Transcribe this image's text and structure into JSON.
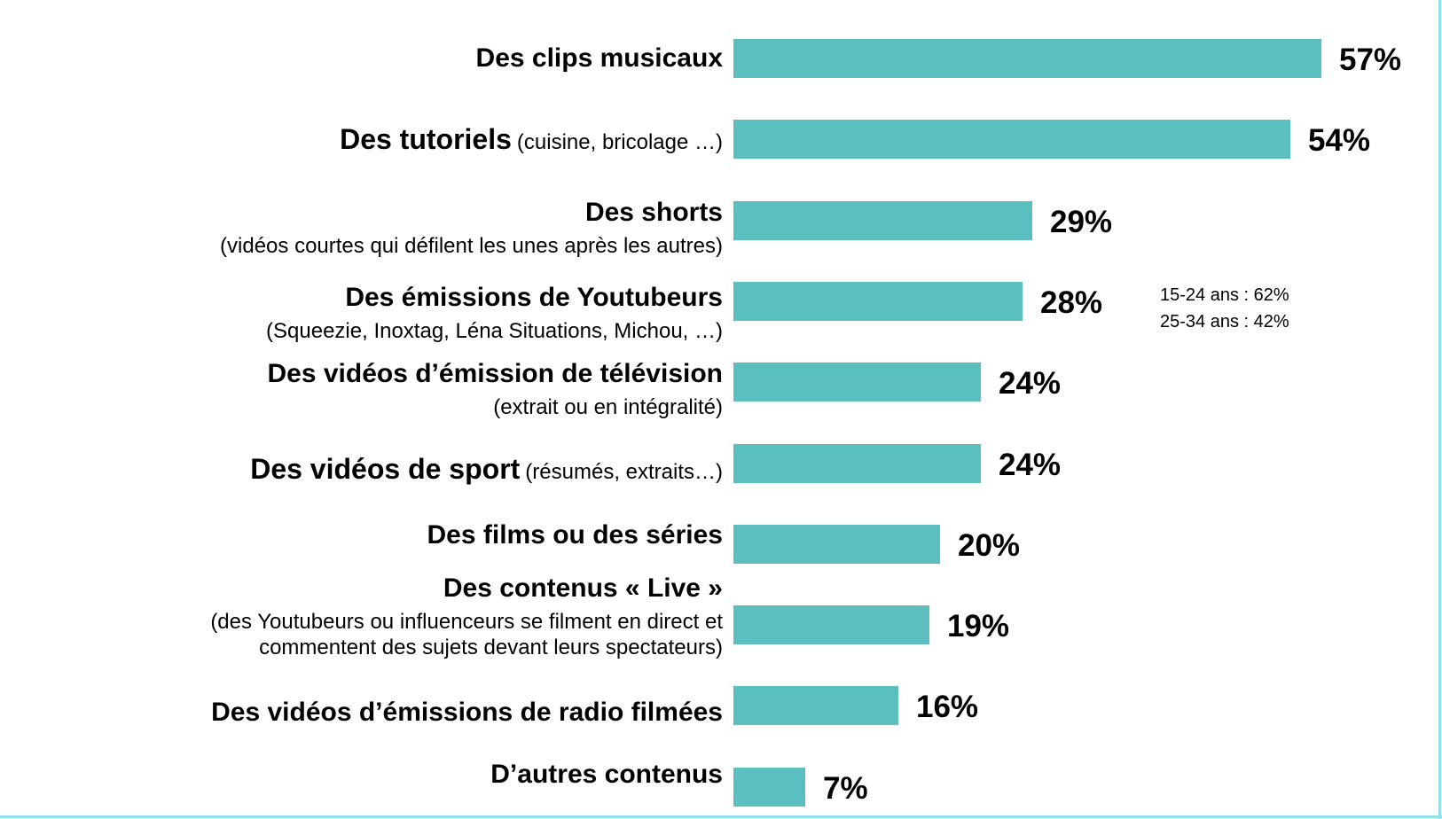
{
  "chart_data": {
    "type": "bar",
    "orientation": "horizontal",
    "xlim": [
      0,
      57
    ],
    "bar_color": "#5bbfc0",
    "border_color": "#8fe3e8",
    "categories": [
      {
        "label": "Des clips musicaux",
        "detail": "",
        "detail_inline": false,
        "value": 57,
        "value_label": "57%"
      },
      {
        "label": "Des tutoriels",
        "detail": "(cuisine, bricolage …)",
        "detail_inline": true,
        "value": 54,
        "value_label": "54%"
      },
      {
        "label": "Des shorts",
        "detail": "(vidéos courtes qui défilent les unes après les autres)",
        "detail_inline": false,
        "value": 29,
        "value_label": "29%"
      },
      {
        "label": "Des émissions de Youtubeurs",
        "detail": "(Squeezie, Inoxtag, Léna Situations, Michou, …)",
        "detail_inline": false,
        "value": 28,
        "value_label": "28%"
      },
      {
        "label": "Des vidéos d’émission de télévision",
        "detail": "(extrait ou en intégralité)",
        "detail_inline": false,
        "value": 24,
        "value_label": "24%"
      },
      {
        "label": "Des vidéos de sport",
        "detail": "(résumés, extraits…)",
        "detail_inline": true,
        "value": 24,
        "value_label": "24%"
      },
      {
        "label": "Des films ou des séries",
        "detail": "",
        "detail_inline": false,
        "value": 20,
        "value_label": "20%"
      },
      {
        "label": "Des contenus « Live »",
        "detail": "(des Youtubeurs ou influenceurs se filment en direct et commentent des sujets devant leurs spectateurs)",
        "detail_inline": false,
        "value": 19,
        "value_label": "19%"
      },
      {
        "label": "Des vidéos d’émissions de radio filmées",
        "detail": "",
        "detail_inline": false,
        "value": 16,
        "value_label": "16%"
      },
      {
        "label": "D’autres contenus",
        "detail": "",
        "detail_inline": false,
        "value": 7,
        "value_label": "7%"
      }
    ],
    "annotations": [
      {
        "category": "Des émissions de Youtubeurs",
        "lines": [
          "15-24 ans : 62%",
          "25-34 ans : 42%"
        ]
      }
    ]
  }
}
